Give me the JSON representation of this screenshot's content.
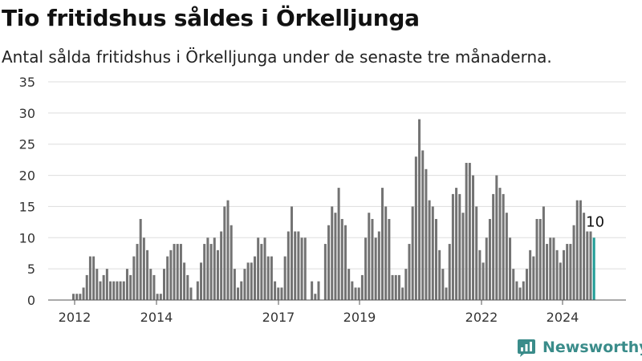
{
  "header": {
    "title": "Tio fritidshus såldes i Örkelljunga",
    "subtitle": "Antal sålda fritidshus i Örkelljunga under de senaste tre månaderna."
  },
  "brand": {
    "name": "Newsworthy",
    "icon": "newsworthy-logo-icon",
    "color": "#3a8c8a"
  },
  "chart_data": {
    "type": "bar",
    "ylim": [
      0,
      35
    ],
    "yticks": [
      0,
      5,
      10,
      15,
      20,
      25,
      30,
      35
    ],
    "xticks": [
      "2012",
      "2014",
      "2017",
      "2019",
      "2022",
      "2024"
    ],
    "grid": true,
    "bar_color": "#737373",
    "highlight_color": "#1f9c95",
    "highlight_label": "10",
    "values": [
      1,
      1,
      1,
      2,
      4,
      7,
      7,
      5,
      3,
      4,
      5,
      3,
      3,
      3,
      3,
      3,
      5,
      4,
      7,
      9,
      13,
      10,
      8,
      5,
      4,
      1,
      1,
      5,
      7,
      8,
      9,
      9,
      9,
      6,
      4,
      2,
      0,
      3,
      6,
      9,
      10,
      9,
      10,
      8,
      11,
      15,
      16,
      12,
      5,
      2,
      3,
      5,
      6,
      6,
      7,
      10,
      9,
      10,
      7,
      7,
      3,
      2,
      2,
      7,
      11,
      15,
      11,
      11,
      10,
      10,
      0,
      3,
      1,
      3,
      0,
      9,
      12,
      15,
      14,
      18,
      13,
      12,
      5,
      3,
      2,
      2,
      4,
      10,
      14,
      13,
      10,
      11,
      18,
      15,
      13,
      4,
      4,
      4,
      2,
      5,
      9,
      15,
      23,
      29,
      24,
      21,
      16,
      15,
      13,
      8,
      5,
      2,
      9,
      17,
      18,
      17,
      14,
      22,
      22,
      20,
      15,
      8,
      6,
      10,
      13,
      17,
      20,
      18,
      17,
      14,
      10,
      5,
      3,
      2,
      3,
      5,
      8,
      7,
      13,
      13,
      15,
      9,
      10,
      10,
      8,
      6,
      8,
      9,
      9,
      12,
      16,
      16,
      14,
      11,
      11,
      10
    ]
  }
}
